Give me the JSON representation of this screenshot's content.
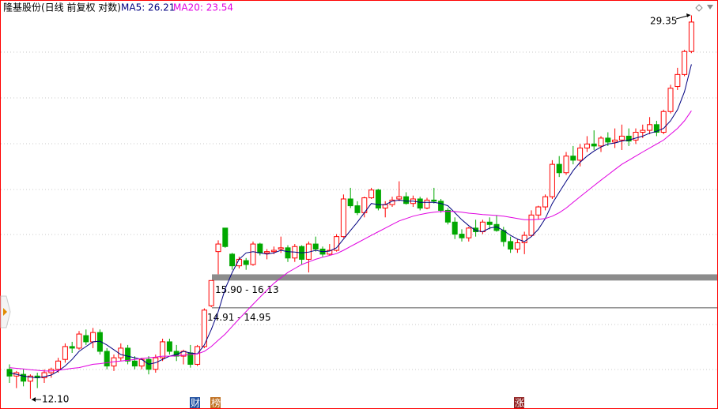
{
  "chart_data": {
    "type": "candlestick",
    "title": "隆基股份(日线 前复权 对数)",
    "log_scale": true,
    "ylim": [
      11.88,
      30.3
    ],
    "up_color": "#ff0000",
    "down_color": "#00a800",
    "ohlc": [
      [
        12.95,
        13.1,
        12.55,
        12.75
      ],
      [
        12.75,
        12.9,
        12.4,
        12.85
      ],
      [
        12.8,
        12.95,
        12.45,
        12.6
      ],
      [
        12.6,
        12.8,
        12.1,
        12.75
      ],
      [
        12.75,
        12.85,
        12.4,
        12.7
      ],
      [
        12.7,
        12.95,
        12.55,
        12.85
      ],
      [
        12.85,
        13.0,
        12.7,
        12.95
      ],
      [
        12.95,
        13.3,
        12.85,
        13.2
      ],
      [
        13.25,
        13.75,
        13.15,
        13.65
      ],
      [
        13.65,
        13.8,
        13.45,
        13.6
      ],
      [
        13.6,
        14.15,
        13.55,
        14.05
      ],
      [
        14.0,
        14.2,
        13.7,
        13.8
      ],
      [
        13.8,
        14.25,
        13.6,
        14.1
      ],
      [
        14.1,
        14.2,
        13.4,
        13.5
      ],
      [
        13.5,
        13.6,
        12.95,
        13.05
      ],
      [
        13.05,
        13.4,
        12.9,
        13.3
      ],
      [
        13.3,
        13.75,
        13.2,
        13.6
      ],
      [
        13.6,
        13.7,
        13.1,
        13.2
      ],
      [
        13.2,
        13.35,
        12.95,
        13.05
      ],
      [
        13.05,
        13.3,
        12.95,
        13.25
      ],
      [
        13.25,
        13.35,
        12.8,
        12.95
      ],
      [
        12.95,
        13.4,
        12.85,
        13.3
      ],
      [
        13.3,
        13.9,
        13.2,
        13.8
      ],
      [
        13.8,
        13.9,
        13.4,
        13.5
      ],
      [
        13.5,
        13.7,
        13.2,
        13.35
      ],
      [
        13.35,
        13.55,
        13.1,
        13.5
      ],
      [
        13.45,
        13.7,
        13.0,
        13.1
      ],
      [
        13.1,
        13.7,
        13.05,
        13.65
      ],
      [
        13.65,
        14.91,
        13.6,
        14.85
      ],
      [
        15.0,
        15.9,
        14.95,
        15.9
      ],
      [
        17.0,
        17.45,
        16.13,
        17.3
      ],
      [
        17.95,
        17.95,
        17.15,
        17.2
      ],
      [
        16.9,
        16.95,
        16.3,
        16.45
      ],
      [
        16.45,
        16.8,
        16.35,
        16.7
      ],
      [
        16.65,
        16.75,
        16.3,
        16.5
      ],
      [
        16.5,
        17.4,
        16.45,
        17.3
      ],
      [
        17.3,
        17.35,
        16.85,
        16.95
      ],
      [
        16.95,
        17.1,
        16.7,
        17.0
      ],
      [
        17.0,
        17.2,
        16.9,
        17.05
      ],
      [
        17.1,
        17.6,
        16.95,
        17.15
      ],
      [
        17.15,
        17.25,
        16.6,
        16.75
      ],
      [
        16.75,
        17.3,
        16.6,
        17.2
      ],
      [
        17.2,
        17.25,
        16.5,
        16.7
      ],
      [
        16.7,
        17.4,
        16.2,
        17.3
      ],
      [
        17.3,
        17.6,
        17.0,
        17.1
      ],
      [
        17.1,
        17.2,
        16.8,
        16.9
      ],
      [
        16.9,
        17.3,
        16.85,
        17.05
      ],
      [
        17.05,
        17.7,
        17.0,
        17.6
      ],
      [
        17.6,
        19.4,
        17.55,
        19.2
      ],
      [
        19.2,
        19.7,
        18.8,
        18.9
      ],
      [
        18.9,
        19.1,
        18.5,
        18.6
      ],
      [
        18.6,
        19.3,
        18.4,
        19.25
      ],
      [
        19.25,
        19.7,
        19.2,
        19.6
      ],
      [
        19.6,
        19.65,
        18.7,
        18.8
      ],
      [
        18.8,
        19.1,
        18.4,
        18.95
      ],
      [
        18.95,
        19.3,
        18.85,
        19.15
      ],
      [
        19.2,
        20.0,
        19.1,
        19.3
      ],
      [
        19.3,
        19.5,
        18.95,
        19.0
      ],
      [
        19.0,
        19.35,
        18.85,
        19.2
      ],
      [
        19.2,
        19.3,
        18.7,
        18.8
      ],
      [
        18.8,
        19.25,
        18.75,
        19.15
      ],
      [
        19.15,
        19.7,
        19.0,
        19.1
      ],
      [
        19.1,
        19.2,
        18.6,
        18.7
      ],
      [
        18.7,
        18.8,
        18.1,
        18.2
      ],
      [
        18.2,
        18.4,
        17.5,
        17.7
      ],
      [
        17.7,
        17.9,
        17.4,
        17.55
      ],
      [
        17.55,
        18.0,
        17.4,
        17.95
      ],
      [
        17.95,
        18.3,
        17.6,
        17.8
      ],
      [
        17.8,
        18.3,
        17.7,
        18.2
      ],
      [
        18.2,
        18.4,
        17.9,
        18.1
      ],
      [
        18.1,
        18.5,
        17.8,
        17.85
      ],
      [
        17.85,
        18.0,
        17.2,
        17.4
      ],
      [
        17.4,
        17.6,
        16.95,
        17.1
      ],
      [
        17.1,
        17.5,
        16.95,
        17.35
      ],
      [
        17.35,
        17.8,
        16.9,
        17.65
      ],
      [
        17.65,
        18.7,
        17.6,
        18.5
      ],
      [
        18.5,
        18.9,
        18.3,
        18.85
      ],
      [
        18.85,
        19.4,
        18.7,
        19.3
      ],
      [
        19.3,
        21.0,
        19.2,
        20.8
      ],
      [
        20.8,
        21.2,
        20.2,
        20.4
      ],
      [
        20.4,
        21.4,
        20.3,
        21.2
      ],
      [
        21.2,
        21.7,
        20.8,
        21.0
      ],
      [
        21.0,
        21.8,
        20.7,
        21.6
      ],
      [
        21.6,
        22.2,
        21.4,
        21.8
      ],
      [
        21.8,
        22.5,
        21.5,
        21.7
      ],
      [
        21.7,
        22.2,
        21.4,
        22.1
      ],
      [
        22.1,
        22.4,
        21.7,
        21.9
      ],
      [
        21.9,
        22.6,
        21.6,
        22.0
      ],
      [
        22.0,
        22.8,
        21.5,
        22.2
      ],
      [
        22.2,
        22.6,
        21.7,
        21.95
      ],
      [
        22.0,
        22.6,
        21.8,
        22.4
      ],
      [
        22.4,
        22.8,
        22.1,
        22.5
      ],
      [
        22.5,
        23.2,
        22.3,
        22.8
      ],
      [
        22.8,
        23.0,
        22.2,
        22.4
      ],
      [
        22.4,
        23.6,
        22.3,
        23.5
      ],
      [
        23.5,
        25.0,
        23.4,
        24.8
      ],
      [
        24.9,
        26.0,
        24.7,
        25.6
      ],
      [
        25.6,
        27.1,
        25.5,
        27.0
      ],
      [
        27.0,
        29.35,
        26.9,
        28.9
      ]
    ],
    "lines": [
      {
        "name": "MA5",
        "legend": "MA5: 26.21",
        "color": "#000080",
        "values": [
          12.85,
          12.8,
          12.75,
          12.72,
          12.7,
          12.73,
          12.78,
          12.9,
          13.05,
          13.25,
          13.5,
          13.65,
          13.8,
          13.82,
          13.7,
          13.55,
          13.4,
          13.35,
          13.3,
          13.25,
          13.1,
          13.15,
          13.25,
          13.35,
          13.4,
          13.5,
          13.45,
          13.42,
          13.7,
          14.2,
          14.8,
          15.6,
          16.2,
          16.7,
          16.95,
          17.0,
          16.95,
          16.9,
          16.95,
          17.05,
          17.0,
          16.98,
          16.95,
          16.98,
          17.05,
          17.0,
          17.02,
          17.15,
          17.5,
          17.85,
          18.2,
          18.6,
          19.0,
          18.95,
          18.95,
          19.1,
          19.15,
          19.1,
          19.1,
          19.05,
          19.05,
          19.05,
          19.0,
          18.9,
          18.6,
          18.3,
          18.05,
          17.85,
          17.8,
          17.95,
          18.0,
          17.85,
          17.65,
          17.5,
          17.4,
          17.6,
          17.9,
          18.35,
          19.0,
          19.5,
          20.0,
          20.5,
          20.9,
          21.2,
          21.45,
          21.65,
          21.8,
          21.85,
          21.95,
          22.0,
          22.1,
          22.2,
          22.35,
          22.45,
          22.6,
          23.0,
          23.6,
          24.6,
          26.21
        ]
      },
      {
        "name": "MA20",
        "legend": "MA20: 23.54",
        "color": "#e000e0",
        "values": [
          13.0,
          12.98,
          12.96,
          12.94,
          12.92,
          12.9,
          12.9,
          12.92,
          12.95,
          12.98,
          13.0,
          13.05,
          13.1,
          13.12,
          13.15,
          13.18,
          13.2,
          13.22,
          13.25,
          13.28,
          13.3,
          13.32,
          13.35,
          13.35,
          13.36,
          13.38,
          13.4,
          13.42,
          13.5,
          13.65,
          13.85,
          14.05,
          14.3,
          14.55,
          14.8,
          15.05,
          15.3,
          15.55,
          15.8,
          16.0,
          16.2,
          16.35,
          16.5,
          16.6,
          16.7,
          16.78,
          16.85,
          16.92,
          17.05,
          17.2,
          17.35,
          17.5,
          17.65,
          17.8,
          17.95,
          18.1,
          18.25,
          18.35,
          18.45,
          18.52,
          18.58,
          18.62,
          18.65,
          18.66,
          18.65,
          18.62,
          18.58,
          18.55,
          18.52,
          18.5,
          18.48,
          18.45,
          18.4,
          18.35,
          18.3,
          18.3,
          18.32,
          18.35,
          18.45,
          18.6,
          18.8,
          19.05,
          19.3,
          19.55,
          19.8,
          20.05,
          20.3,
          20.55,
          20.8,
          21.0,
          21.2,
          21.4,
          21.6,
          21.8,
          22.0,
          22.3,
          22.6,
          23.0,
          23.54
        ]
      }
    ],
    "gaps": [
      {
        "label": "15.90 - 16.13",
        "low": 15.9,
        "high": 16.13,
        "color": "#8c8c8c"
      },
      {
        "label": "14.91 - 14.95",
        "low": 14.91,
        "high": 14.95,
        "color": "#8c8c8c"
      }
    ],
    "annotations": [
      {
        "text": "29.35"
      },
      {
        "text": "12.10"
      }
    ],
    "markers": [
      {
        "text": "财"
      },
      {
        "text": "榜"
      },
      {
        "text": "涨"
      }
    ]
  }
}
